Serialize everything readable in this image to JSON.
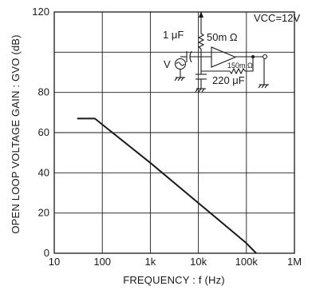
{
  "chart_data": {
    "type": "line",
    "xlabel": "FREQUENCY : f  (Hz)",
    "ylabel": "OPEN LOOP VOLTAGE GAIN : GVO   (dB)",
    "xscale": "log",
    "xlim": [
      10,
      1000000
    ],
    "ylim": [
      0,
      120
    ],
    "grid": true,
    "x_tick_labels": [
      "10",
      "100",
      "1k",
      "10k",
      "100k",
      "1M"
    ],
    "y_tick_labels": [
      "0",
      "20",
      "40",
      "60",
      "80",
      "120"
    ],
    "series": [
      {
        "x": [
          30,
          70,
          100,
          1000,
          10000,
          100000,
          160000
        ],
        "y": [
          67,
          67,
          64,
          45,
          25,
          5,
          0
        ],
        "color": "#1a1a1a"
      }
    ],
    "inset": {
      "vcc_label": "VCC=12V",
      "cap_input_label": "1 μF",
      "res_feedback_label": "50m Ω",
      "res_load_label": "150m Ω",
      "cap_bypass_label": "220 μF",
      "source_label": "V"
    }
  }
}
